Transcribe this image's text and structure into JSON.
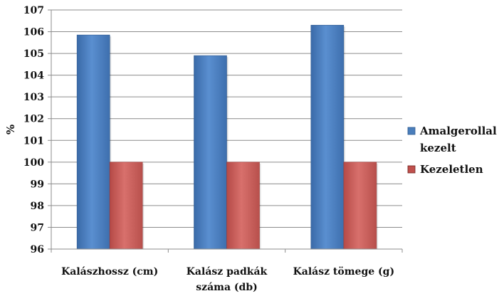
{
  "chart_data": {
    "type": "bar",
    "categories": [
      [
        "Kalászhossz (cm)"
      ],
      [
        "Kalász padkák",
        "száma (db)"
      ],
      [
        "Kalász tömege (g)"
      ]
    ],
    "series": [
      {
        "name_lines": [
          "Amalgerollal",
          "kezelt"
        ],
        "values": [
          105.85,
          104.9,
          106.3
        ],
        "color": "#4a7ebb"
      },
      {
        "name_lines": [
          "Kezeletlen"
        ],
        "values": [
          100,
          100,
          100
        ],
        "color": "#c0504d"
      }
    ],
    "ylabel": "%",
    "ylim": [
      96,
      107
    ],
    "yticks": [
      96,
      97,
      98,
      99,
      100,
      101,
      102,
      103,
      104,
      105,
      106,
      107
    ],
    "grid": true,
    "legend_position": "right"
  }
}
